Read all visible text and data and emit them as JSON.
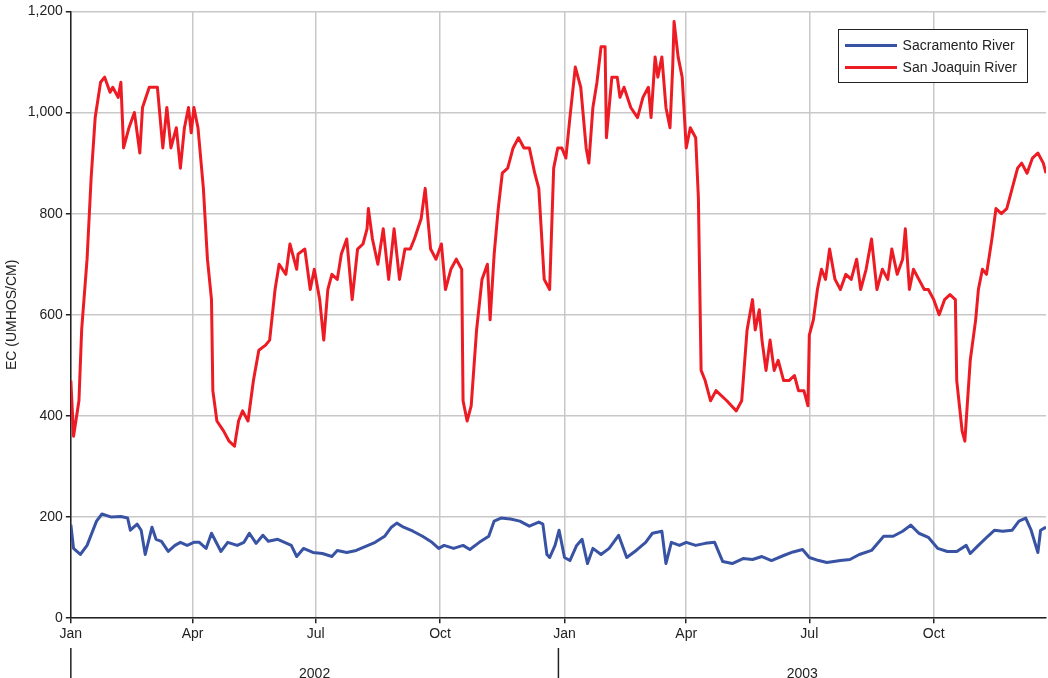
{
  "chart_data": {
    "type": "line",
    "ylabel": "EC (UMHOS/CM)",
    "xlim": [
      "2002-01-01",
      "2003-12-23"
    ],
    "xticks": [
      {
        "value": "2002-01-01",
        "label": "Jan"
      },
      {
        "value": "2002-04-01",
        "label": "Apr"
      },
      {
        "value": "2002-07-01",
        "label": "Jul"
      },
      {
        "value": "2002-10-01",
        "label": "Oct"
      },
      {
        "value": "2003-01-01",
        "label": "Jan"
      },
      {
        "value": "2003-04-01",
        "label": "Apr"
      },
      {
        "value": "2003-07-01",
        "label": "Jul"
      },
      {
        "value": "2003-10-01",
        "label": "Oct"
      }
    ],
    "ylim": [
      0,
      1200
    ],
    "yticks": [
      {
        "value": 0,
        "label": "0"
      },
      {
        "value": 200,
        "label": "200"
      },
      {
        "value": 400,
        "label": "400"
      },
      {
        "value": 600,
        "label": "600"
      },
      {
        "value": 800,
        "label": "800"
      },
      {
        "value": 1000,
        "label": "1,000"
      },
      {
        "value": 1200,
        "label": "1,200"
      }
    ],
    "annotations": [
      "2002",
      "2003"
    ],
    "grid": true,
    "legend": "top right",
    "marker": "none",
    "line_style": "solid",
    "series": [
      {
        "name": "Sacramento River",
        "color": "#3953a4",
        "x": [
          "2002-01-01",
          "2002-01-03",
          "2002-01-08",
          "2002-01-13",
          "2002-01-20",
          "2002-01-24",
          "2002-01-31",
          "2002-02-07",
          "2002-02-12",
          "2002-02-14",
          "2002-02-19",
          "2002-02-22",
          "2002-02-25",
          "2002-03-02",
          "2002-03-05",
          "2002-03-09",
          "2002-03-14",
          "2002-03-19",
          "2002-03-23",
          "2002-03-28",
          "2002-04-02",
          "2002-04-06",
          "2002-04-11",
          "2002-04-15",
          "2002-04-22",
          "2002-04-27",
          "2002-05-04",
          "2002-05-09",
          "2002-05-13",
          "2002-05-18",
          "2002-05-23",
          "2002-05-27",
          "2002-06-03",
          "2002-06-08",
          "2002-06-13",
          "2002-06-17",
          "2002-06-22",
          "2002-06-29",
          "2002-07-06",
          "2002-07-13",
          "2002-07-17",
          "2002-07-24",
          "2002-07-31",
          "2002-08-07",
          "2002-08-14",
          "2002-08-21",
          "2002-08-26",
          "2002-08-30",
          "2002-09-04",
          "2002-09-11",
          "2002-09-18",
          "2002-09-25",
          "2002-09-30",
          "2002-10-04",
          "2002-10-11",
          "2002-10-18",
          "2002-10-23",
          "2002-10-30",
          "2002-11-06",
          "2002-11-10",
          "2002-11-15",
          "2002-11-22",
          "2002-11-29",
          "2002-12-06",
          "2002-12-13",
          "2002-12-16",
          "2002-12-19",
          "2002-12-21",
          "2002-12-25",
          "2002-12-28",
          "2003-01-01",
          "2003-01-05",
          "2003-01-10",
          "2003-01-14",
          "2003-01-18",
          "2003-01-22",
          "2003-01-28",
          "2003-02-03",
          "2003-02-10",
          "2003-02-16",
          "2003-02-23",
          "2003-03-02",
          "2003-03-07",
          "2003-03-14",
          "2003-03-17",
          "2003-03-21",
          "2003-03-27",
          "2003-04-01",
          "2003-04-08",
          "2003-04-15",
          "2003-04-22",
          "2003-04-28",
          "2003-05-05",
          "2003-05-13",
          "2003-05-20",
          "2003-05-27",
          "2003-06-03",
          "2003-06-12",
          "2003-06-19",
          "2003-06-26",
          "2003-07-01",
          "2003-07-08",
          "2003-07-14",
          "2003-07-24",
          "2003-07-31",
          "2003-08-07",
          "2003-08-16",
          "2003-08-25",
          "2003-09-01",
          "2003-09-08",
          "2003-09-14",
          "2003-09-20",
          "2003-09-27",
          "2003-10-04",
          "2003-10-11",
          "2003-10-18",
          "2003-10-25",
          "2003-10-28",
          "2003-11-03",
          "2003-11-10",
          "2003-11-15",
          "2003-11-21",
          "2003-11-28",
          "2003-12-03",
          "2003-12-08",
          "2003-12-12",
          "2003-12-17",
          "2003-12-19",
          "2003-12-23"
        ],
        "values": [
          185,
          138,
          126,
          144,
          192,
          206,
          200,
          201,
          198,
          174,
          186,
          174,
          126,
          180,
          156,
          152,
          132,
          144,
          150,
          144,
          150,
          150,
          138,
          168,
          132,
          150,
          144,
          150,
          168,
          148,
          164,
          152,
          156,
          150,
          144,
          122,
          138,
          130,
          128,
          122,
          134,
          130,
          134,
          142,
          150,
          162,
          180,
          188,
          180,
          172,
          162,
          150,
          138,
          144,
          138,
          144,
          136,
          150,
          162,
          192,
          198,
          196,
          192,
          182,
          190,
          186,
          126,
          120,
          144,
          174,
          120,
          114,
          144,
          156,
          108,
          138,
          126,
          138,
          164,
          120,
          134,
          150,
          168,
          172,
          108,
          150,
          144,
          150,
          144,
          148,
          150,
          112,
          108,
          118,
          116,
          122,
          114,
          124,
          131,
          136,
          120,
          114,
          110,
          114,
          116,
          126,
          134,
          162,
          162,
          172,
          184,
          168,
          160,
          138,
          132,
          132,
          144,
          128,
          144,
          162,
          174,
          172,
          174,
          192,
          198,
          174,
          130,
          174,
          180
        ]
      },
      {
        "name": "San Joaquin River",
        "color": "#ed1c24",
        "x": [
          "2002-01-01",
          "2002-01-03",
          "2002-01-07",
          "2002-01-09",
          "2002-01-13",
          "2002-01-16",
          "2002-01-19",
          "2002-01-23",
          "2002-01-26",
          "2002-01-30",
          "2002-02-01",
          "2002-02-05",
          "2002-02-07",
          "2002-02-09",
          "2002-02-13",
          "2002-02-17",
          "2002-02-21",
          "2002-02-23",
          "2002-02-28",
          "2002-03-06",
          "2002-03-08",
          "2002-03-10",
          "2002-03-13",
          "2002-03-16",
          "2002-03-20",
          "2002-03-23",
          "2002-03-26",
          "2002-03-29",
          "2002-03-31",
          "2002-04-02",
          "2002-04-05",
          "2002-04-09",
          "2002-04-12",
          "2002-04-15",
          "2002-04-16",
          "2002-04-19",
          "2002-04-24",
          "2002-04-28",
          "2002-05-02",
          "2002-05-05",
          "2002-05-08",
          "2002-05-12",
          "2002-05-16",
          "2002-05-20",
          "2002-05-25",
          "2002-05-28",
          "2002-06-01",
          "2002-06-04",
          "2002-06-09",
          "2002-06-12",
          "2002-06-17",
          "2002-06-18",
          "2002-06-23",
          "2002-06-27",
          "2002-06-30",
          "2002-07-04",
          "2002-07-07",
          "2002-07-10",
          "2002-07-13",
          "2002-07-17",
          "2002-07-20",
          "2002-07-24",
          "2002-07-28",
          "2002-08-01",
          "2002-08-05",
          "2002-08-08",
          "2002-08-09",
          "2002-08-12",
          "2002-08-16",
          "2002-08-20",
          "2002-08-24",
          "2002-08-28",
          "2002-09-01",
          "2002-09-05",
          "2002-09-09",
          "2002-09-12",
          "2002-09-17",
          "2002-09-20",
          "2002-09-24",
          "2002-09-28",
          "2002-10-02",
          "2002-10-05",
          "2002-10-09",
          "2002-10-13",
          "2002-10-17",
          "2002-10-18",
          "2002-10-21",
          "2002-10-24",
          "2002-10-28",
          "2002-11-01",
          "2002-11-05",
          "2002-11-07",
          "2002-11-10",
          "2002-11-13",
          "2002-11-16",
          "2002-11-20",
          "2002-11-24",
          "2002-11-28",
          "2002-12-02",
          "2002-12-06",
          "2002-12-10",
          "2002-12-13",
          "2002-12-17",
          "2002-12-21",
          "2002-12-24",
          "2002-12-27",
          "2002-12-30",
          "2003-01-02",
          "2003-01-05",
          "2003-01-09",
          "2003-01-13",
          "2003-01-17",
          "2003-01-19",
          "2003-01-22",
          "2003-01-25",
          "2003-01-28",
          "2003-01-31",
          "2003-02-01",
          "2003-02-05",
          "2003-02-09",
          "2003-02-11",
          "2003-02-14",
          "2003-02-19",
          "2003-02-24",
          "2003-02-28",
          "2003-03-04",
          "2003-03-06",
          "2003-03-09",
          "2003-03-11",
          "2003-03-14",
          "2003-03-17",
          "2003-03-20",
          "2003-03-22",
          "2003-03-23",
          "2003-03-26",
          "2003-03-29",
          "2003-04-01",
          "2003-04-04",
          "2003-04-08",
          "2003-04-10",
          "2003-04-12",
          "2003-04-15",
          "2003-04-19",
          "2003-04-23",
          "2003-05-01",
          "2003-05-08",
          "2003-05-12",
          "2003-05-16",
          "2003-05-20",
          "2003-05-22",
          "2003-05-25",
          "2003-05-27",
          "2003-05-30",
          "2003-06-02",
          "2003-06-05",
          "2003-06-08",
          "2003-06-12",
          "2003-06-16",
          "2003-06-20",
          "2003-06-23",
          "2003-06-27",
          "2003-06-30",
          "2003-07-01",
          "2003-07-04",
          "2003-07-07",
          "2003-07-10",
          "2003-07-13",
          "2003-07-16",
          "2003-07-20",
          "2003-07-24",
          "2003-07-28",
          "2003-08-01",
          "2003-08-05",
          "2003-08-08",
          "2003-08-12",
          "2003-08-16",
          "2003-08-20",
          "2003-08-24",
          "2003-08-28",
          "2003-08-31",
          "2003-09-04",
          "2003-09-08",
          "2003-09-10",
          "2003-09-13",
          "2003-09-16",
          "2003-09-20",
          "2003-09-24",
          "2003-09-27",
          "2003-10-01",
          "2003-10-05",
          "2003-10-09",
          "2003-10-13",
          "2003-10-17",
          "2003-10-18",
          "2003-10-22",
          "2003-10-24",
          "2003-10-28",
          "2003-11-01",
          "2003-11-03",
          "2003-11-06",
          "2003-11-09",
          "2003-11-13",
          "2003-11-16",
          "2003-11-20",
          "2003-11-24",
          "2003-11-28",
          "2003-12-02",
          "2003-12-05",
          "2003-12-09",
          "2003-12-13",
          "2003-12-17",
          "2003-12-21",
          "2003-12-23"
        ],
        "values": [
          470,
          360,
          430,
          570,
          710,
          870,
          990,
          1060,
          1070,
          1040,
          1050,
          1030,
          1060,
          930,
          970,
          1000,
          920,
          1010,
          1050,
          1050,
          990,
          930,
          1010,
          930,
          970,
          890,
          970,
          1010,
          960,
          1010,
          970,
          850,
          710,
          630,
          450,
          390,
          370,
          350,
          340,
          390,
          410,
          390,
          470,
          530,
          540,
          550,
          650,
          700,
          680,
          740,
          690,
          720,
          730,
          650,
          690,
          630,
          550,
          650,
          680,
          670,
          720,
          750,
          630,
          730,
          740,
          770,
          810,
          750,
          700,
          770,
          670,
          770,
          670,
          730,
          730,
          750,
          790,
          850,
          730,
          710,
          740,
          650,
          690,
          710,
          690,
          430,
          390,
          420,
          570,
          670,
          700,
          590,
          720,
          810,
          880,
          890,
          930,
          950,
          930,
          930,
          880,
          850,
          670,
          650,
          890,
          930,
          930,
          910,
          990,
          1090,
          1050,
          930,
          900,
          1010,
          1060,
          1130,
          1130,
          950,
          1070,
          1070,
          1030,
          1050,
          1010,
          990,
          1030,
          1050,
          990,
          1110,
          1070,
          1110,
          1010,
          970,
          1090,
          1180,
          1110,
          1070,
          930,
          970,
          950,
          830,
          490,
          470,
          430,
          450,
          430,
          410,
          430,
          570,
          630,
          570,
          610,
          550,
          490,
          550,
          490,
          510,
          470,
          470,
          480,
          450,
          450,
          420,
          560,
          590,
          650,
          690,
          670,
          730,
          670,
          650,
          680,
          670,
          710,
          650,
          690,
          750,
          650,
          690,
          670,
          730,
          680,
          710,
          770,
          650,
          690,
          670,
          650,
          650,
          630,
          600,
          630,
          640,
          630,
          470,
          370,
          350,
          510,
          590,
          650,
          690,
          680,
          750,
          810,
          800,
          810,
          850,
          890,
          900,
          880,
          910,
          920,
          900,
          880
        ]
      }
    ]
  }
}
